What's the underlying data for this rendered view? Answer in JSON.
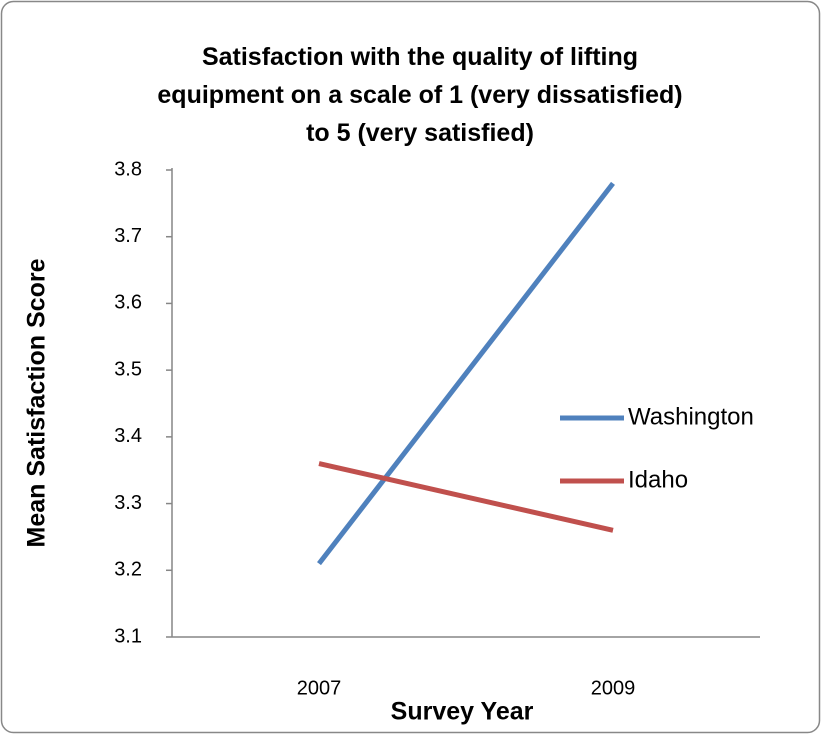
{
  "chart_data": {
    "type": "line",
    "title": "Satisfaction with the quality of lifting equipment on a scale of 1 (very dissatisfied) to 5 (very satisfied)",
    "x_label": "Survey Year",
    "y_label": "Mean Satisfaction Score",
    "categories": [
      "2007",
      "2009"
    ],
    "series": [
      {
        "name": "Washington",
        "color": "#4f81bd",
        "values": [
          3.21,
          3.78
        ]
      },
      {
        "name": "Idaho",
        "color": "#c0504d",
        "values": [
          3.36,
          3.26
        ]
      }
    ],
    "ylim": [
      3.1,
      3.8
    ],
    "yticks": [
      3.1,
      3.2,
      3.3,
      3.4,
      3.5,
      3.6,
      3.7,
      3.8
    ],
    "grid": false,
    "legend": "right"
  }
}
